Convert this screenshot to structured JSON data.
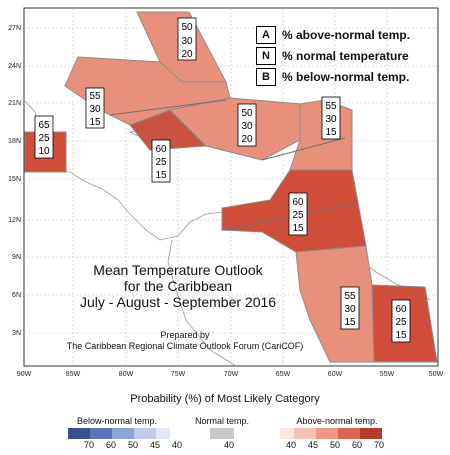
{
  "title": {
    "line1": "Mean Temperature Outlook",
    "line2": "for the Caribbean",
    "line3": "July - August - September 2016",
    "prepared1": "Prepared by",
    "prepared2": "The Caribbean Regional Climate Outlook Forum (CariCOF)"
  },
  "key": {
    "a_letter": "A",
    "a_text": "% above-normal temp.",
    "n_letter": "N",
    "n_text": "% normal temperature",
    "b_letter": "B",
    "b_text": "% below-normal temp."
  },
  "lat_labels": [
    "27N",
    "24N",
    "21N",
    "18N",
    "15N",
    "12N",
    "9N",
    "6N",
    "3N"
  ],
  "lon_labels": [
    "90W",
    "85W",
    "80W",
    "75W",
    "70W",
    "65W",
    "60W",
    "55W",
    "50W"
  ],
  "regions": [
    {
      "name": "bahamas-north",
      "above": "50",
      "normal": "30",
      "below": "20",
      "color": "#e8907a"
    },
    {
      "name": "cuba",
      "above": "55",
      "normal": "30",
      "below": "15",
      "color": "#e8907a"
    },
    {
      "name": "hispaniola",
      "above": "50",
      "normal": "30",
      "below": "20",
      "color": "#e8907a"
    },
    {
      "name": "leeward-islands",
      "above": "55",
      "normal": "30",
      "below": "15",
      "color": "#e8907a"
    },
    {
      "name": "belize",
      "above": "65",
      "normal": "25",
      "below": "10",
      "color": "#d04d3a"
    },
    {
      "name": "jamaica",
      "above": "60",
      "normal": "25",
      "below": "15",
      "color": "#c9533e"
    },
    {
      "name": "windward-islands",
      "above": "60",
      "normal": "25",
      "below": "15",
      "color": "#d04d3a"
    },
    {
      "name": "guyana",
      "above": "55",
      "normal": "30",
      "below": "15",
      "color": "#e8907a"
    },
    {
      "name": "suriname",
      "above": "60",
      "normal": "25",
      "below": "15",
      "color": "#d04d3a"
    }
  ],
  "legend": {
    "caption": "Probability (%) of Most Likely Category",
    "below_title": "Below-normal temp.",
    "normal_title": "Normal temp.",
    "above_title": "Above-normal temp.",
    "below_ticks": [
      "70",
      "60",
      "50",
      "45",
      "40"
    ],
    "normal_ticks": [
      "40"
    ],
    "above_ticks": [
      "40",
      "45",
      "50",
      "60",
      "70"
    ],
    "below_colors": [
      "#3a4f8c",
      "#5b74b8",
      "#8ea3d6",
      "#c0cbeb",
      "#e2e7f6"
    ],
    "normal_color": "#c8c8c8",
    "above_colors": [
      "#fbe6e2",
      "#f6c0b6",
      "#ef9887",
      "#dd6450",
      "#b8392a"
    ]
  }
}
